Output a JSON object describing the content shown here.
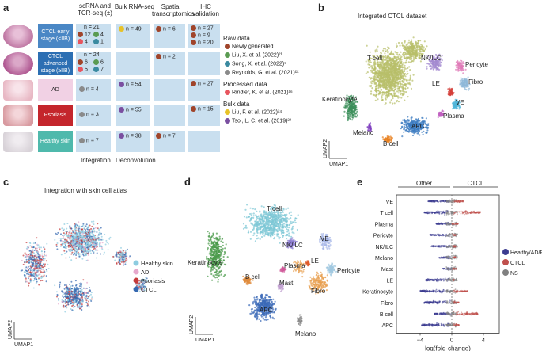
{
  "panel_a": {
    "label": "a",
    "columns": [
      "scRNA and TCR-seq (±)",
      "Bulk RNA-seq",
      "Spatial transcriptomics",
      "IHC validation"
    ],
    "rows": [
      {
        "name": "CTCL early stage (<IIB)",
        "color": "#4a87c5",
        "sc_total": "n = 21",
        "sc": [
          [
            "#a0442a",
            "12"
          ],
          [
            "#5a9b52",
            "4"
          ],
          [
            "#e8555e",
            "4"
          ],
          [
            "#3a8aa0",
            "1"
          ]
        ],
        "bulk": "n = 49",
        "spatial": "n = 6",
        "ihc": [
          "n = 27",
          "n = 9",
          "n = 20"
        ]
      },
      {
        "name": "CTCL advanced stage (≥IIB)",
        "color": "#2c6fb3",
        "sc_total": "n = 24",
        "sc": [
          [
            "#a0442a",
            "6"
          ],
          [
            "#5a9b52",
            "6"
          ],
          [
            "#e8555e",
            "5"
          ],
          [
            "#3a8aa0",
            "7"
          ]
        ],
        "spatial": "n = 2"
      },
      {
        "name": "AD",
        "color": "#f1d1e4",
        "sc_total": "n = 4",
        "bulk": "n = 54",
        "ihc": [
          "n = 27"
        ]
      },
      {
        "name": "Psoriasis",
        "color": "#c4262c",
        "sc_total": "n = 3",
        "bulk": "n = 55",
        "ihc": [
          "n = 15"
        ]
      },
      {
        "name": "Healthy skin",
        "color": "#4fb9ac",
        "sc_total": "n = 7",
        "bulk": "n = 38",
        "spatial": "n = 7"
      }
    ],
    "footer": [
      "Integration",
      "Deconvolution"
    ],
    "legend": {
      "raw_title": "Raw data",
      "raw": [
        {
          "color": "#a0442a",
          "text": "Newly generated"
        },
        {
          "color": "#5a9b52",
          "text": "Liu, X. et al. (2022)²¹"
        },
        {
          "color": "#3a8aa0",
          "text": "Song, X. et al. (2022)⁹"
        },
        {
          "color": "#8a8a8a",
          "text": "Reynolds, G. et al. (2021)²²"
        }
      ],
      "proc_title": "Processed data",
      "proc": [
        {
          "color": "#e8555e",
          "text": "Rindler, K. et al. (2021)¹⁶"
        }
      ],
      "bulk_title": "Bulk data",
      "bulk": [
        {
          "color": "#e8c227",
          "text": "Liu, F. et al. (2022)²⁴"
        },
        {
          "color": "#7a4fa0",
          "text": "Tsoi, L. C. et al. (2019)²³"
        }
      ]
    }
  },
  "panel_b": {
    "label": "b",
    "title": "Integrated CTCL dataset",
    "clusters": [
      "T cell",
      "NK/ILC",
      "Pericyte",
      "Fibro",
      "LE",
      "VE",
      "Keratinocyte",
      "Plasma",
      "APC",
      "B cell",
      "Melano"
    ],
    "colors": {
      "T cell": "#b8bf6a",
      "NK/ILC": "#a48ad0",
      "Pericyte": "#e07ab8",
      "Fibro": "#8fb8d8",
      "LE": "#d4403a",
      "VE": "#4fb5d8",
      "Keratinocyte": "#3a8f5a",
      "Plasma": "#c060c0",
      "APC": "#3a7ac0",
      "B cell": "#e88020",
      "Melano": "#8040c0"
    },
    "xlabel": "UMAP1",
    "ylabel": "UMAP2"
  },
  "panel_c": {
    "label": "c",
    "title": "Integration with skin cell atlas",
    "legend": [
      {
        "name": "Healthy skin",
        "color": "#8dcce0"
      },
      {
        "name": "AD",
        "color": "#e6a8cc"
      },
      {
        "name": "Psoriasis",
        "color": "#c43a3a"
      },
      {
        "name": "CTCL",
        "color": "#3568b0"
      }
    ],
    "xlabel": "UMAP1",
    "ylabel": "UMAP2"
  },
  "panel_d": {
    "label": "d",
    "clusters": [
      "T cell",
      "NK/ILC",
      "VE",
      "Plasma",
      "LE",
      "Keratinocyte",
      "Pericyte",
      "B cell",
      "Mast",
      "Fibro",
      "APC",
      "Melano"
    ],
    "colors": {
      "T cell": "#7ec8d6",
      "NK/ILC": "#8a7ad0",
      "VE": "#a8b8e8",
      "Plasma": "#d05a9a",
      "LE": "#e05a2a",
      "Keratinocyte": "#4a9a4a",
      "Pericyte": "#a0c8e0",
      "B cell": "#e08a3a",
      "Mast": "#c0a0d0",
      "Fibro": "#e8a050",
      "APC": "#3a6ab8",
      "Melano": "#8a8a8a"
    },
    "xlabel": "UMAP1",
    "ylabel": "UMAP2"
  },
  "panel_e": {
    "label": "e",
    "header_left": "Other",
    "header_right": "CTCL",
    "legend": [
      {
        "name": "Healthy/AD/Ps",
        "color": "#3b3b8f"
      },
      {
        "name": "CTCL",
        "color": "#c0504d"
      },
      {
        "name": "NS",
        "color": "#808080"
      }
    ],
    "xlabel": "log(fold-change)"
  },
  "chart_data": {
    "type": "scatter",
    "title": "",
    "xlabel": "log(fold-change)",
    "ylabel": "",
    "xlim": [
      -7,
      6
    ],
    "xticks": [
      -4,
      0,
      4
    ],
    "categories": [
      "VE",
      "T cell",
      "Plasma",
      "Pericyte",
      "NK/ILC",
      "Melano",
      "Mast",
      "LE",
      "Keratinocyte",
      "Fibro",
      "B cell",
      "APC"
    ],
    "series": [
      {
        "name": "Healthy/AD/Ps",
        "values": [
          -3.0,
          -3.5,
          -2.0,
          -2.8,
          -2.6,
          -1.6,
          -1.2,
          -3.3,
          -4.0,
          -3.5,
          -2.2,
          -3.8
        ]
      },
      {
        "name": "CTCL",
        "values": [
          1.5,
          3.6,
          0.8,
          0.5,
          0.5,
          0.5,
          0.6,
          0.3,
          2.0,
          0.9,
          3.3,
          0.9
        ]
      },
      {
        "name": "NS",
        "values": [
          0,
          0,
          0,
          0,
          0,
          0,
          0,
          0,
          0,
          0,
          0,
          0
        ]
      }
    ]
  }
}
